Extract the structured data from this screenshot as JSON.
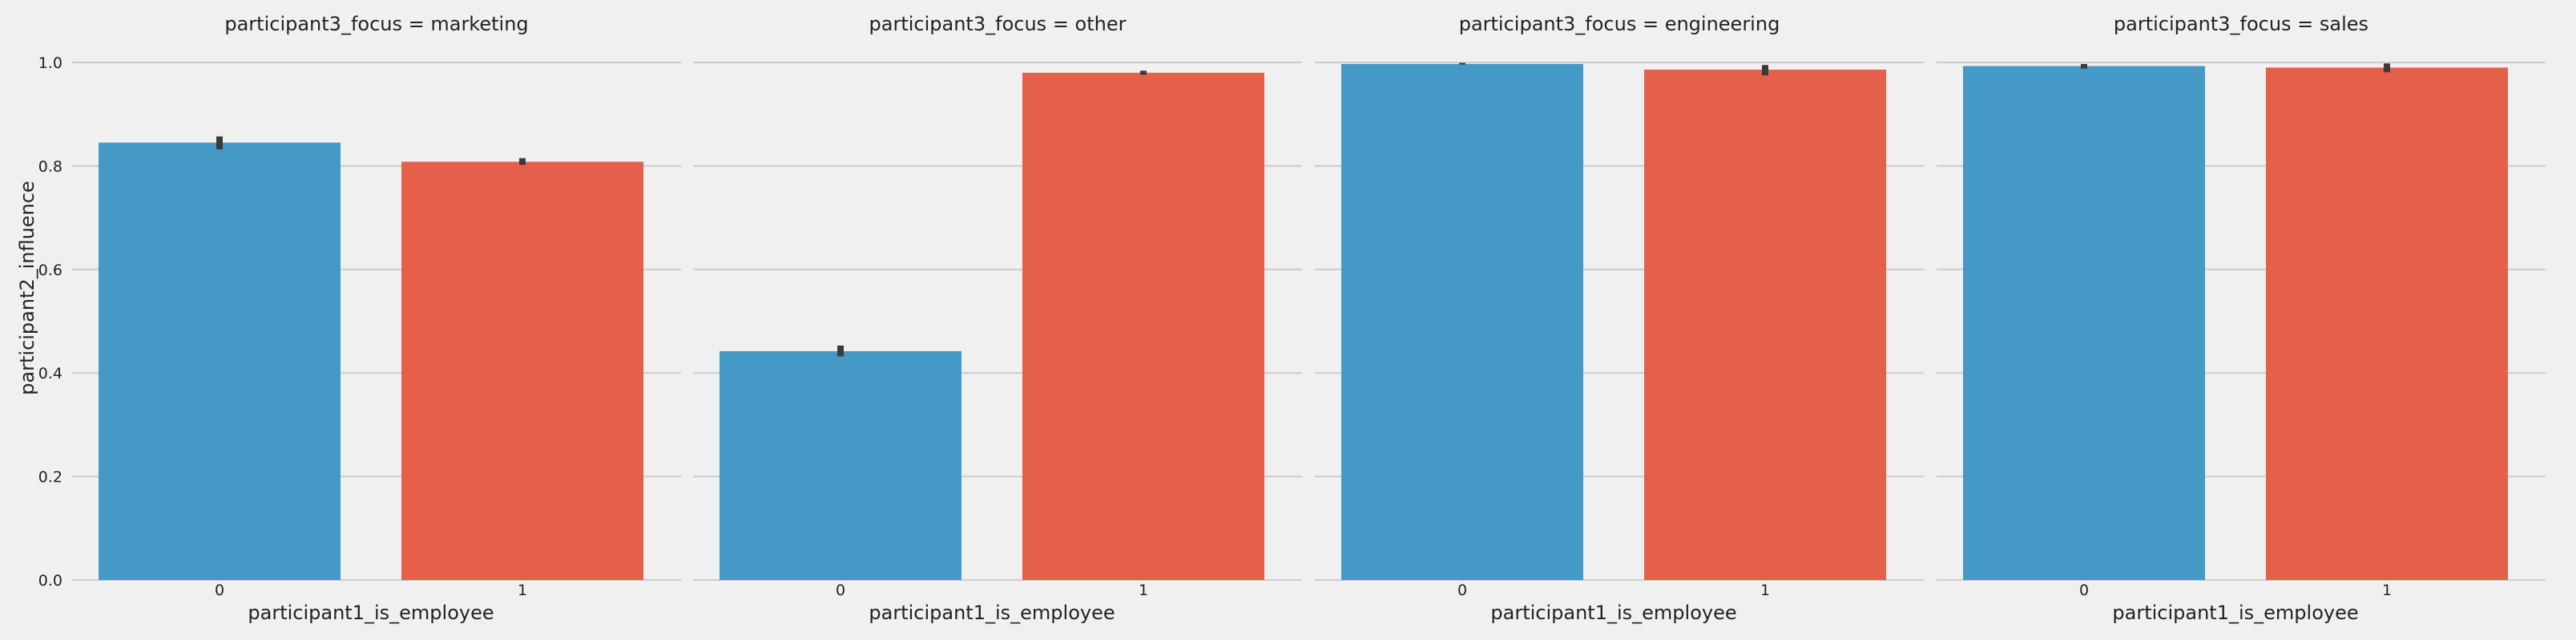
{
  "chart_data": {
    "type": "bar",
    "ylabel": "participant2_influence",
    "ylim": [
      0,
      1.0
    ],
    "yticks": [
      "0.0",
      "0.2",
      "0.4",
      "0.6",
      "0.8",
      "1.0"
    ],
    "ytick_values": [
      0.0,
      0.2,
      0.4,
      0.6,
      0.8,
      1.0
    ],
    "grid": true,
    "colors": {
      "background": "#f0f0f0",
      "grid": "#cbcbcb",
      "category_0": "#4599c7",
      "category_1": "#e5604a",
      "error_bar": "#3a3a3a",
      "text": "#222222"
    },
    "panels": [
      {
        "title": "participant3_focus = marketing",
        "xlabel": "participant1_is_employee",
        "categories": [
          "0",
          "1"
        ],
        "values": [
          0.845,
          0.808
        ],
        "error_low": [
          0.832,
          0.802
        ],
        "error_high": [
          0.857,
          0.815
        ]
      },
      {
        "title": "participant3_focus = other",
        "xlabel": "participant1_is_employee",
        "categories": [
          "0",
          "1"
        ],
        "values": [
          0.442,
          0.98
        ],
        "error_low": [
          0.432,
          0.976
        ],
        "error_high": [
          0.453,
          0.984
        ]
      },
      {
        "title": "participant3_focus = engineering",
        "xlabel": "participant1_is_employee",
        "categories": [
          "0",
          "1"
        ],
        "values": [
          0.997,
          0.986
        ],
        "error_low": [
          0.996,
          0.975
        ],
        "error_high": [
          0.999,
          0.995
        ]
      },
      {
        "title": "participant3_focus = sales",
        "xlabel": "participant1_is_employee",
        "categories": [
          "0",
          "1"
        ],
        "values": [
          0.993,
          0.99
        ],
        "error_low": [
          0.988,
          0.981
        ],
        "error_high": [
          0.997,
          0.998
        ]
      }
    ]
  }
}
